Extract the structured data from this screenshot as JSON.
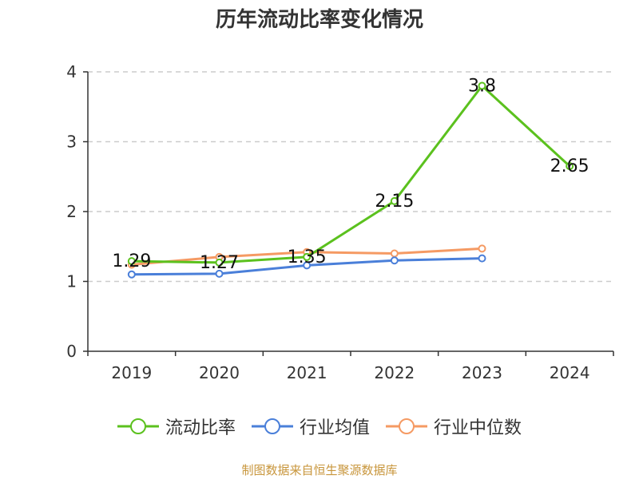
{
  "source": "制图数据来自恒生聚源数据库",
  "chart_data": {
    "type": "line",
    "title": "历年流动比率变化情况",
    "categories": [
      "2019",
      "2020",
      "2021",
      "2022",
      "2023",
      "2024"
    ],
    "ylim": [
      0,
      4
    ],
    "yticks": [
      "0",
      "1",
      "2",
      "3",
      "4"
    ],
    "grid": true,
    "legend_position": "bottom",
    "series": [
      {
        "name": "流动比率",
        "color": "#5bc11e",
        "values": [
          1.29,
          1.27,
          1.35,
          2.15,
          3.8,
          2.65
        ],
        "labels": [
          "1.29",
          "1.27",
          "1.35",
          "2.15",
          "3.8",
          "2.65"
        ]
      },
      {
        "name": "行业均值",
        "color": "#4a7fd9",
        "values": [
          1.1,
          1.11,
          1.23,
          1.3,
          1.33,
          null
        ],
        "labels": null
      },
      {
        "name": "行业中位数",
        "color": "#f59a63",
        "values": [
          1.24,
          1.35,
          1.42,
          1.4,
          1.47,
          null
        ],
        "labels": null
      }
    ]
  }
}
